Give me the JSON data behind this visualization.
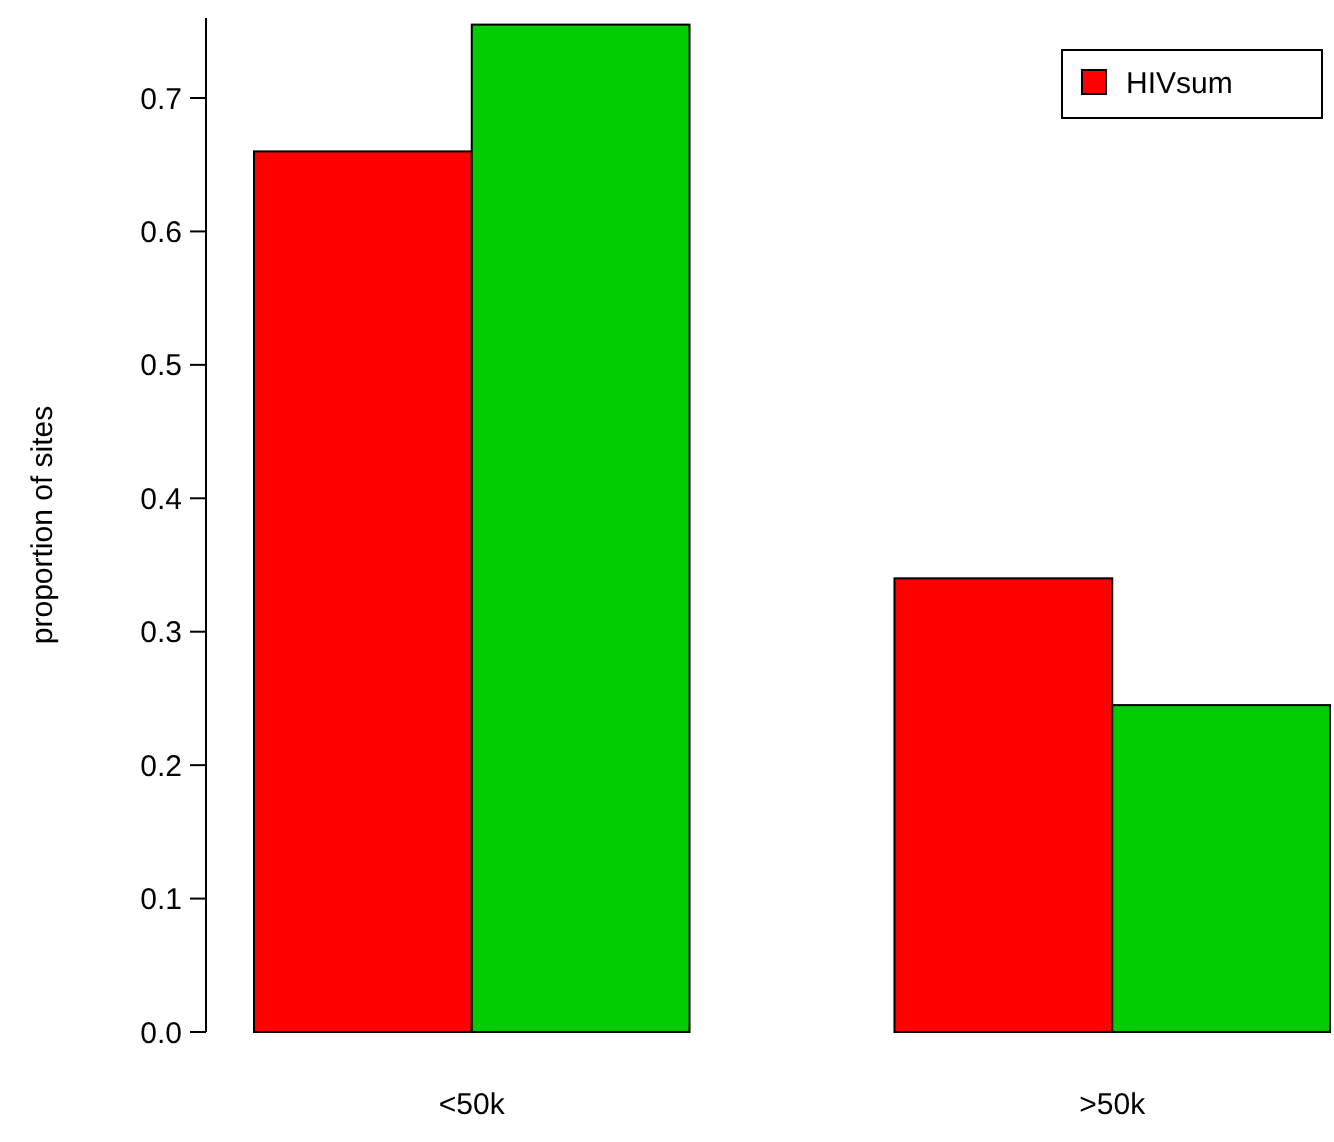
{
  "chart_data": {
    "type": "bar",
    "ylabel": "proportion of sites",
    "categories": [
      "<50k",
      ">50k"
    ],
    "series": [
      {
        "name": "HIVsum",
        "color": "#ff0000",
        "values": [
          0.66,
          0.34
        ]
      },
      {
        "color": "#00cd00",
        "values": [
          0.755,
          0.245
        ]
      }
    ],
    "ylim": [
      0,
      0.76
    ],
    "yticks": [
      {
        "value": 0,
        "label": "0.0"
      },
      0.1,
      0.2,
      0.3,
      0.4,
      0.5,
      0.6,
      0.7
    ],
    "legend": "top right",
    "grid": false
  }
}
